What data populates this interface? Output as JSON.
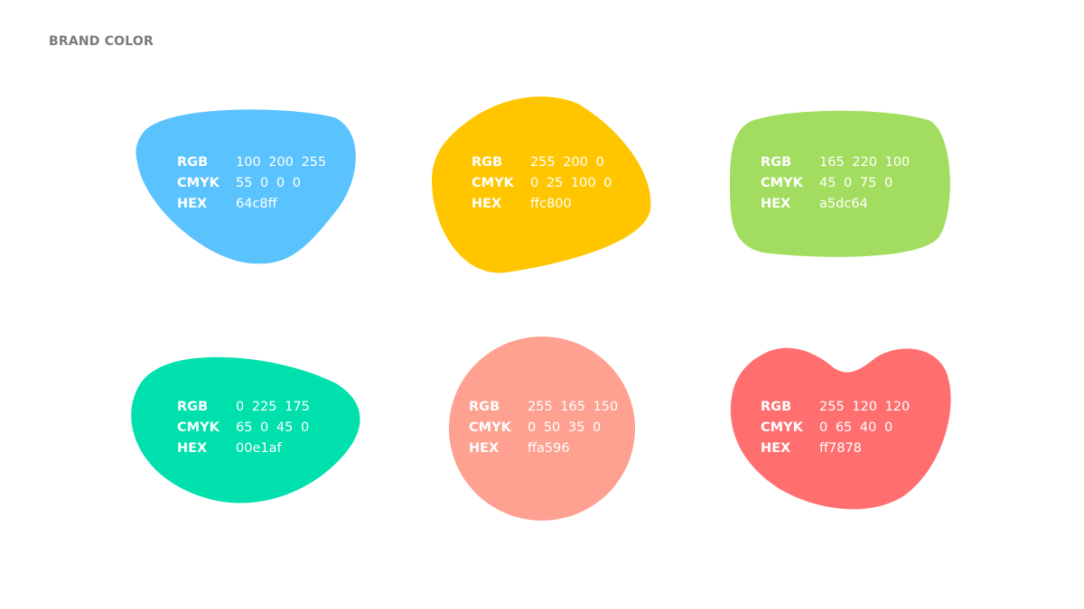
{
  "title": "BRAND COLOR",
  "labels": {
    "rgb": "RGB",
    "cmyk": "CMYK",
    "hex": "HEX"
  },
  "colors": [
    {
      "fill": "#5ac3fd",
      "rgb": "100 200 255",
      "cmyk": "55 0 0 0",
      "hex": "64c8ff"
    },
    {
      "fill": "#ffc600",
      "rgb": "255 200 0",
      "cmyk": "0 25 100 0",
      "hex": "ffc800"
    },
    {
      "fill": "#a3dd5f",
      "rgb": "165 220 100",
      "cmyk": "45 0 75 0",
      "hex": "a5dc64"
    },
    {
      "fill": "#00e0ad",
      "rgb": "0 225 175",
      "cmyk": "65 0 45 0",
      "hex": "00e1af"
    },
    {
      "fill": "#fea190",
      "rgb": "255 165 150",
      "cmyk": "0 50 35 0",
      "hex": "ffa596"
    },
    {
      "fill": "#ff6f6f",
      "rgb": "255 120 120",
      "cmyk": "0 65 40 0",
      "hex": "ff7878"
    }
  ]
}
